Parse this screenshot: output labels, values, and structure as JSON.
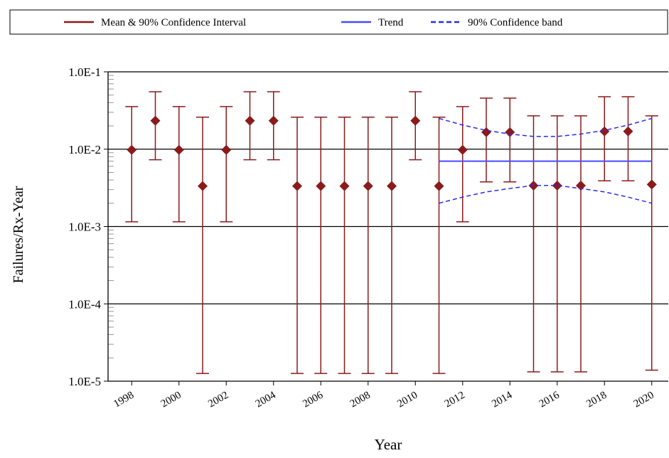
{
  "chart_data": {
    "type": "errorbar",
    "x_label": "Year",
    "y_label": "Failures/Rx-Year",
    "log_y": true,
    "grid": true,
    "legend": "top",
    "xlim": [
      1997,
      2020.7
    ],
    "xticks": [
      1998,
      2000,
      2002,
      2004,
      2006,
      2008,
      2010,
      2012,
      2014,
      2016,
      2018,
      2020
    ],
    "ylim": [
      1e-05,
      0.1
    ],
    "yticks": [
      {
        "value": 0.1,
        "label": "1.0E-1"
      },
      {
        "value": 0.01,
        "label": "1.0E-2"
      },
      {
        "value": 0.001,
        "label": "1.0E-3"
      },
      {
        "value": 0.0001,
        "label": "1.0E-4"
      },
      {
        "value": 1e-05,
        "label": "1.0E-5"
      }
    ],
    "series": [
      {
        "name": "Mean & 90% Confidence Interval",
        "type": "errorbar",
        "color": "#8b1a1a",
        "x": [
          1998,
          1999,
          2000,
          2001,
          2002,
          2003,
          2004,
          2005,
          2006,
          2007,
          2008,
          2009,
          2010,
          2011,
          2012,
          2013,
          2014,
          2015,
          2016,
          2017,
          2018,
          2019,
          2020
        ],
        "values": [
          0.0098,
          0.0233,
          0.0098,
          0.00333,
          0.0098,
          0.0233,
          0.0233,
          0.00333,
          0.00333,
          0.00333,
          0.00333,
          0.00333,
          0.0233,
          0.00333,
          0.0098,
          0.0166,
          0.0166,
          0.00338,
          0.00338,
          0.00338,
          0.017,
          0.017,
          0.0035
        ],
        "upper": [
          0.0355,
          0.0553,
          0.0355,
          0.0259,
          0.0355,
          0.0553,
          0.0553,
          0.0259,
          0.0259,
          0.0259,
          0.0259,
          0.0259,
          0.0553,
          0.0259,
          0.0355,
          0.0457,
          0.0457,
          0.027,
          0.027,
          0.027,
          0.0477,
          0.0477,
          0.027
        ],
        "lower": [
          0.00115,
          0.0073,
          0.00115,
          1.26e-05,
          0.00115,
          0.0073,
          0.0073,
          1.26e-05,
          1.26e-05,
          1.26e-05,
          1.26e-05,
          1.26e-05,
          0.0073,
          1.26e-05,
          0.00115,
          0.00378,
          0.00378,
          1.32e-05,
          1.32e-05,
          1.32e-05,
          0.0039,
          0.0039,
          1.39e-05
        ]
      },
      {
        "name": "Trend",
        "type": "line",
        "color": "#4a4aff",
        "x": [
          2011,
          2020
        ],
        "values": [
          0.007,
          0.007
        ]
      },
      {
        "name": "90% Confidence band",
        "type": "band",
        "color": "#2a2aee",
        "dashed": true,
        "x": [
          2011,
          2012,
          2013,
          2014,
          2015,
          2016,
          2017,
          2018,
          2019,
          2020
        ],
        "upper": [
          0.025,
          0.0205,
          0.0175,
          0.0157,
          0.0146,
          0.0146,
          0.0157,
          0.0175,
          0.0205,
          0.025
        ],
        "lower": [
          0.002,
          0.0024,
          0.0028,
          0.0031,
          0.0034,
          0.0034,
          0.0031,
          0.0028,
          0.0024,
          0.002
        ]
      }
    ]
  }
}
